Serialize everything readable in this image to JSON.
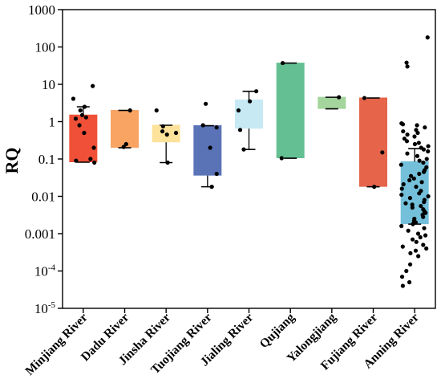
{
  "chart_data": {
    "type": "box",
    "ylabel": "RQ",
    "y_scale": "log",
    "ylim": [
      1e-05,
      1000
    ],
    "y_ticks": [
      {
        "value": 1000,
        "label": "1000",
        "sup": ""
      },
      {
        "value": 100,
        "label": "100",
        "sup": ""
      },
      {
        "value": 10,
        "label": "10",
        "sup": ""
      },
      {
        "value": 1,
        "label": "1",
        "sup": ""
      },
      {
        "value": 0.1,
        "label": "0.1",
        "sup": ""
      },
      {
        "value": 0.01,
        "label": "0.01",
        "sup": ""
      },
      {
        "value": 0.001,
        "label": "0.001",
        "sup": ""
      },
      {
        "value": 0.0001,
        "label": "10",
        "sup": "-4"
      },
      {
        "value": 1e-05,
        "label": "10",
        "sup": "-5"
      }
    ],
    "categories": [
      "Minjiang River",
      "Dadu River",
      "Jinsha River",
      "Tuojiang River",
      "Jialing River",
      "Qujiang",
      "Yalongjiang",
      "Fujiang River",
      "Anning River"
    ],
    "boxes": [
      {
        "category": "Minjiang River",
        "color": "#ef5037",
        "q1": 0.082,
        "median": 1.5,
        "q3": 1.5,
        "whisker_low": 0.082,
        "whisker_high": 2.5,
        "points": [
          9.0,
          4.1,
          2.5,
          2.0,
          1.5,
          1.3,
          1.2,
          0.8,
          0.5,
          0.2,
          0.1,
          0.09,
          0.08
        ]
      },
      {
        "category": "Dadu River",
        "color": "#f9a463",
        "q1": 0.2,
        "median": 2.0,
        "q3": 2.0,
        "whisker_low": 0.2,
        "whisker_high": 2.0,
        "points": [
          2.0,
          0.25,
          0.21
        ]
      },
      {
        "category": "Jinsha River",
        "color": "#fde29b",
        "q1": 0.28,
        "median": 0.8,
        "q3": 0.8,
        "whisker_low": 0.08,
        "whisker_high": 0.8,
        "points": [
          2.0,
          0.75,
          0.55,
          0.5,
          0.45,
          0.08
        ]
      },
      {
        "category": "Tuojiang River",
        "color": "#5a73b7",
        "q1": 0.036,
        "median": 0.78,
        "q3": 0.78,
        "whisker_low": 0.018,
        "whisker_high": 0.78,
        "points": [
          3.0,
          0.8,
          0.7,
          0.2,
          0.04,
          0.018
        ]
      },
      {
        "category": "Jialing River",
        "color": "#c6e9f4",
        "q1": 0.65,
        "median": 3.8,
        "q3": 3.8,
        "whisker_low": 0.18,
        "whisker_high": 6.5,
        "points": [
          6.5,
          3.5,
          2.0,
          0.6,
          0.18
        ]
      },
      {
        "category": "Qujiang",
        "color": "#64bf93",
        "q1": 0.105,
        "median": 37,
        "q3": 37,
        "whisker_low": 0.105,
        "whisker_high": 37,
        "points": [
          37,
          0.105
        ]
      },
      {
        "category": "Yalongjiang",
        "color": "#a4d59c",
        "q1": 2.2,
        "median": 4.5,
        "q3": 4.5,
        "whisker_low": 2.2,
        "whisker_high": 4.5,
        "points": [
          4.5
        ]
      },
      {
        "category": "Fujiang River",
        "color": "#e5644a",
        "q1": 0.018,
        "median": 4.3,
        "q3": 4.3,
        "whisker_low": 0.018,
        "whisker_high": 4.3,
        "points": [
          4.3,
          0.15,
          0.018
        ]
      },
      {
        "category": "Anning River",
        "color": "#74c0db",
        "q1": 0.0018,
        "median": 0.085,
        "q3": 0.085,
        "whisker_low": 0.0018,
        "whisker_high": 0.19,
        "points": [
          180,
          38,
          30,
          0.9,
          0.85,
          0.8,
          0.7,
          0.6,
          0.55,
          0.5,
          0.45,
          0.4,
          0.35,
          0.3,
          0.27,
          0.25,
          0.22,
          0.2,
          0.18,
          0.16,
          0.14,
          0.12,
          0.1,
          0.09,
          0.08,
          0.07,
          0.06,
          0.05,
          0.045,
          0.04,
          0.035,
          0.03,
          0.027,
          0.024,
          0.021,
          0.018,
          0.016,
          0.014,
          0.012,
          0.011,
          0.01,
          0.009,
          0.008,
          0.007,
          0.0065,
          0.006,
          0.0055,
          0.005,
          0.0045,
          0.004,
          0.0036,
          0.0032,
          0.0028,
          0.0025,
          0.0022,
          0.002,
          0.0018,
          0.0016,
          0.0014,
          0.0012,
          0.001,
          0.0009,
          0.0008,
          0.0007,
          0.0006,
          0.0005,
          0.00045,
          0.0004,
          0.00035,
          0.0003,
          0.00025,
          0.00015,
          0.0001,
          7e-05,
          5e-05,
          4e-05
        ]
      }
    ]
  }
}
